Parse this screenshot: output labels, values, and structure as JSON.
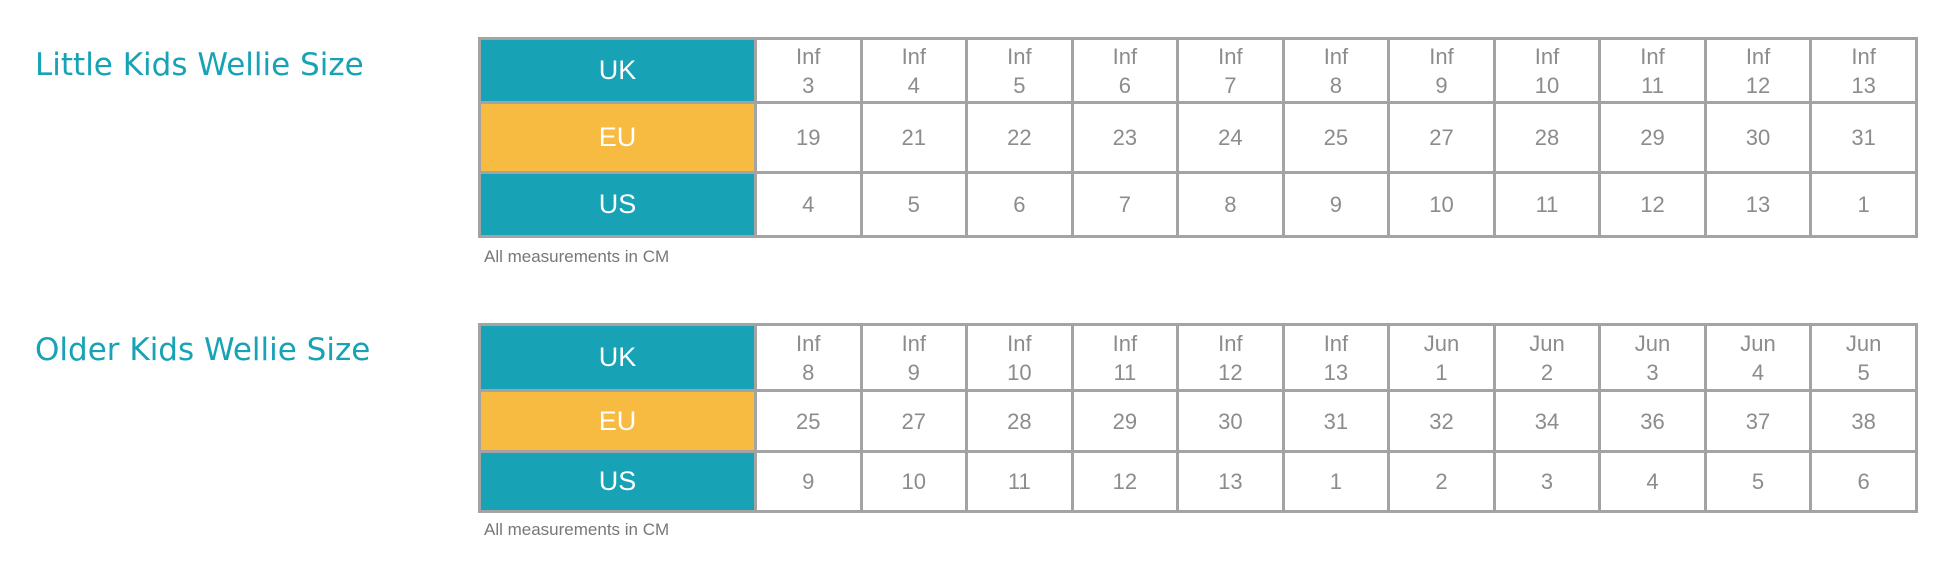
{
  "charts": [
    {
      "title": "Little Kids Wellie Size",
      "row_labels": {
        "uk": "UK",
        "eu": "EU",
        "us": "US"
      },
      "uk": [
        [
          "Inf",
          "3"
        ],
        [
          "Inf",
          "4"
        ],
        [
          "Inf",
          "5"
        ],
        [
          "Inf",
          "6"
        ],
        [
          "Inf",
          "7"
        ],
        [
          "Inf",
          "8"
        ],
        [
          "Inf",
          "9"
        ],
        [
          "Inf",
          "10"
        ],
        [
          "Inf",
          "11"
        ],
        [
          "Inf",
          "12"
        ],
        [
          "Inf",
          "13"
        ]
      ],
      "eu": [
        "19",
        "21",
        "22",
        "23",
        "24",
        "25",
        "27",
        "28",
        "29",
        "30",
        "31"
      ],
      "us": [
        "4",
        "5",
        "6",
        "7",
        "8",
        "9",
        "10",
        "11",
        "12",
        "13",
        "1"
      ],
      "note": "All measurements in CM"
    },
    {
      "title": "Older Kids Wellie Size",
      "row_labels": {
        "uk": "UK",
        "eu": "EU",
        "us": "US"
      },
      "uk": [
        [
          "Inf",
          "8"
        ],
        [
          "Inf",
          "9"
        ],
        [
          "Inf",
          "10"
        ],
        [
          "Inf",
          "11"
        ],
        [
          "Inf",
          "12"
        ],
        [
          "Inf",
          "13"
        ],
        [
          "Jun",
          "1"
        ],
        [
          "Jun",
          "2"
        ],
        [
          "Jun",
          "3"
        ],
        [
          "Jun",
          "4"
        ],
        [
          "Jun",
          "5"
        ]
      ],
      "eu": [
        "25",
        "27",
        "28",
        "29",
        "30",
        "31",
        "32",
        "34",
        "36",
        "37",
        "38"
      ],
      "us": [
        "9",
        "10",
        "11",
        "12",
        "13",
        "1",
        "2",
        "3",
        "4",
        "5",
        "6"
      ],
      "note": "All measurements in CM"
    }
  ],
  "colors": {
    "accent": "#17a3b5",
    "eu_header": "#f8bb42",
    "border": "#a3a3a3",
    "cell_text": "#8c8c8c"
  }
}
